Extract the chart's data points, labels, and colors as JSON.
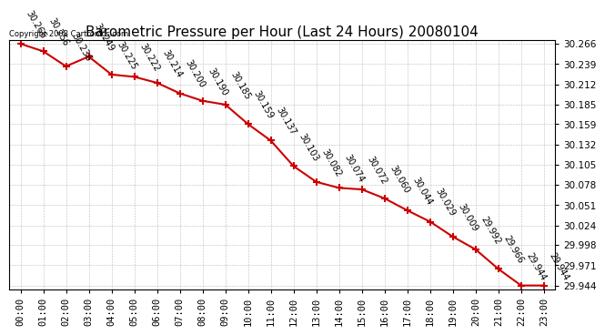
{
  "title": "Barometric Pressure per Hour (Last 24 Hours) 20080104",
  "copyright": "Copyright 2008 Cartronics.com",
  "hours": [
    "00:00",
    "01:00",
    "02:00",
    "03:00",
    "04:00",
    "05:00",
    "06:00",
    "07:00",
    "08:00",
    "09:00",
    "10:00",
    "11:00",
    "12:00",
    "13:00",
    "14:00",
    "15:00",
    "16:00",
    "17:00",
    "18:00",
    "19:00",
    "20:00",
    "21:00",
    "22:00",
    "23:00"
  ],
  "values": [
    30.266,
    30.256,
    30.236,
    30.249,
    30.225,
    30.222,
    30.214,
    30.2,
    30.19,
    30.185,
    30.159,
    30.137,
    30.103,
    30.082,
    30.074,
    30.072,
    30.06,
    30.044,
    30.029,
    30.009,
    29.992,
    29.966,
    29.944,
    29.944
  ],
  "ylim_min": 29.939,
  "ylim_max": 30.271,
  "yticks": [
    29.944,
    29.971,
    29.998,
    30.024,
    30.051,
    30.078,
    30.105,
    30.132,
    30.159,
    30.185,
    30.212,
    30.239,
    30.266
  ],
  "line_color": "#cc0000",
  "marker_color": "#cc0000",
  "bg_color": "#ffffff",
  "grid_color": "#bbbbbb",
  "title_fontsize": 11,
  "label_fontsize": 7,
  "tick_fontsize": 7.5,
  "copyright_fontsize": 6
}
